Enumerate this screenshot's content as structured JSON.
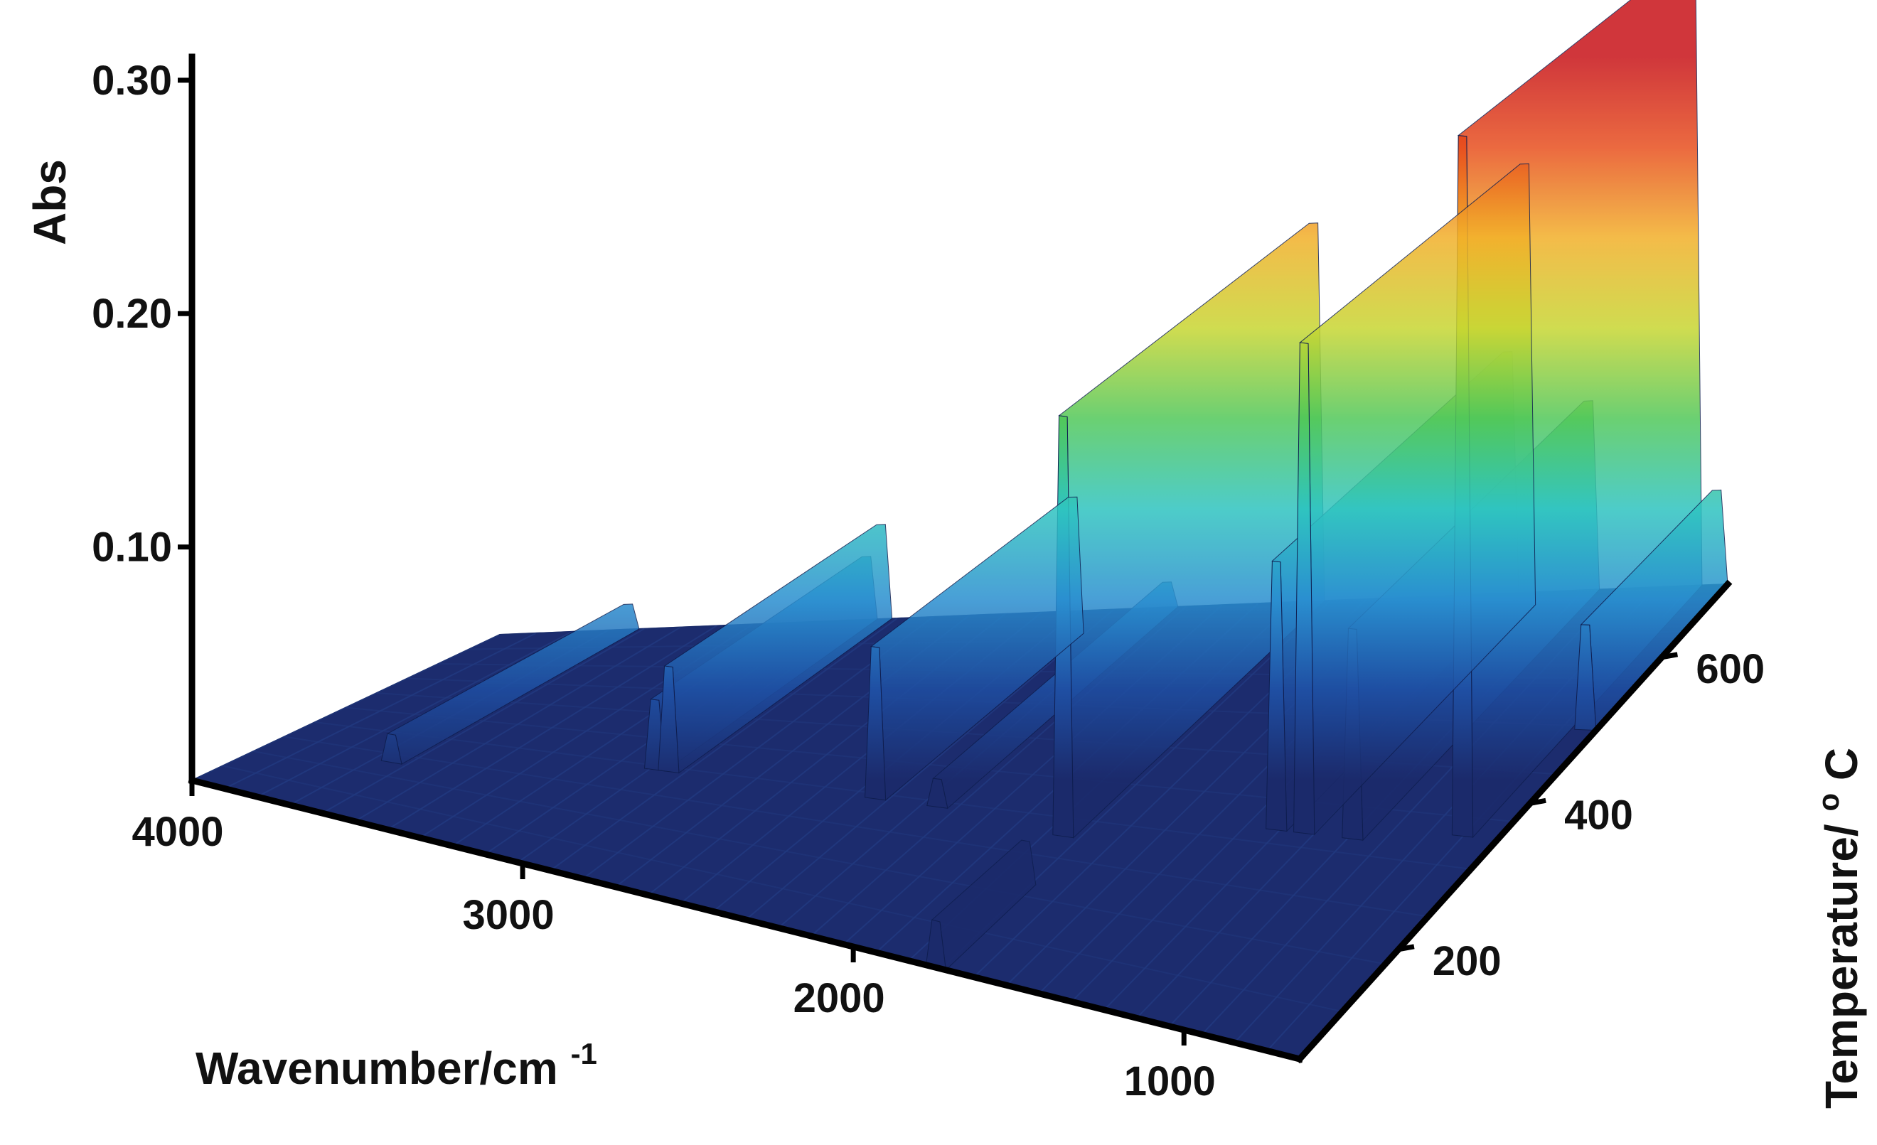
{
  "chart_data": {
    "type": "surface3d",
    "title": "",
    "z_axis": {
      "label": "Abs",
      "ticks": [
        "0.10",
        "0.20",
        "0.30"
      ],
      "range": [
        0.0,
        0.31
      ]
    },
    "x_axis": {
      "label": "Wavenumber/cm",
      "label_sup": "-1",
      "ticks": [
        "4000",
        "3000",
        "2000",
        "1000"
      ],
      "range": [
        4000,
        650
      ]
    },
    "y_axis": {
      "label": "Temperature/",
      "label_sup": "o",
      "label_tail": "C",
      "ticks": [
        "200",
        "400",
        "600"
      ],
      "range": [
        50,
        700
      ]
    },
    "colormap": [
      "#1b2a6b",
      "#1f4fa3",
      "#2a8fd0",
      "#2fc4c0",
      "#52c85a",
      "#c8d632",
      "#f2b02a",
      "#e8501f",
      "#c8141a"
    ],
    "peaks": [
      {
        "wavenumber": 3650,
        "temp_from": 220,
        "temp_to": 700,
        "abs": 0.012
      },
      {
        "wavenumber": 3000,
        "temp_from": 300,
        "temp_to": 700,
        "abs": 0.03
      },
      {
        "wavenumber": 2960,
        "temp_from": 300,
        "temp_to": 700,
        "abs": 0.045
      },
      {
        "wavenumber": 2360,
        "temp_from": 300,
        "temp_to": 650,
        "abs": 0.065
      },
      {
        "wavenumber": 2180,
        "temp_from": 300,
        "temp_to": 700,
        "abs": 0.012
      },
      {
        "wavenumber": 1780,
        "temp_from": 280,
        "temp_to": 700,
        "abs": 0.18
      },
      {
        "wavenumber": 1250,
        "temp_from": 330,
        "temp_to": 700,
        "abs": 0.115
      },
      {
        "wavenumber": 1170,
        "temp_from": 330,
        "temp_to": 680,
        "abs": 0.21
      },
      {
        "wavenumber": 1030,
        "temp_from": 330,
        "temp_to": 700,
        "abs": 0.09
      },
      {
        "wavenumber": 750,
        "temp_from": 350,
        "temp_to": 700,
        "abs": 0.3
      },
      {
        "wavenumber": 680,
        "temp_from": 500,
        "temp_to": 700,
        "abs": 0.045
      },
      {
        "wavenumber": 1750,
        "temp_from": 50,
        "temp_to": 200,
        "abs": 0.02
      }
    ]
  }
}
